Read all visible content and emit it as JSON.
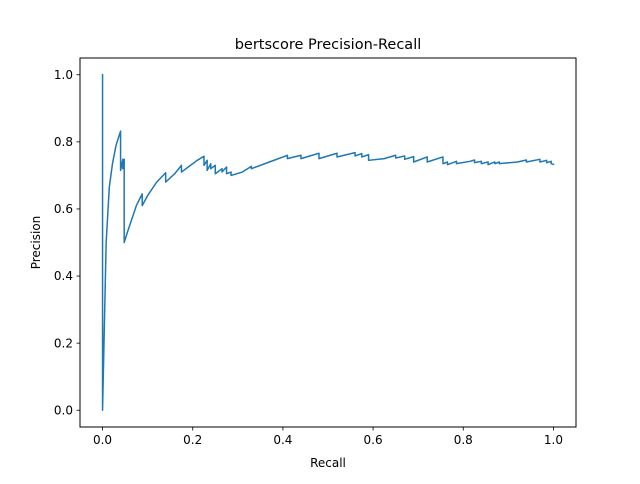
{
  "chart_data": {
    "type": "line",
    "title": "bertscore Precision-Recall",
    "xlabel": "Recall",
    "ylabel": "Precision",
    "xlim": [
      -0.05,
      1.05
    ],
    "ylim": [
      -0.05,
      1.05
    ],
    "x_ticks": [
      0.0,
      0.2,
      0.4,
      0.6,
      0.8,
      1.0
    ],
    "x_tick_labels": [
      "0.0",
      "0.2",
      "0.4",
      "0.6",
      "0.8",
      "1.0"
    ],
    "y_ticks": [
      0.0,
      0.2,
      0.4,
      0.6,
      0.8,
      1.0
    ],
    "y_tick_labels": [
      "0.0",
      "0.2",
      "0.4",
      "0.6",
      "0.8",
      "1.0"
    ],
    "grid": false,
    "legend": "none",
    "series": [
      {
        "color": "#1f77b4",
        "x": [
          0.0,
          0.0,
          0.008,
          0.015,
          0.022,
          0.03,
          0.04,
          0.04,
          0.045,
          0.045,
          0.048,
          0.048,
          0.055,
          0.065,
          0.075,
          0.088,
          0.088,
          0.1,
          0.12,
          0.14,
          0.14,
          0.16,
          0.175,
          0.175,
          0.19,
          0.21,
          0.225,
          0.225,
          0.232,
          0.232,
          0.24,
          0.24,
          0.25,
          0.25,
          0.265,
          0.265,
          0.275,
          0.275,
          0.285,
          0.285,
          0.31,
          0.33,
          0.33,
          0.37,
          0.41,
          0.41,
          0.44,
          0.44,
          0.48,
          0.48,
          0.52,
          0.52,
          0.56,
          0.56,
          0.575,
          0.575,
          0.59,
          0.59,
          0.625,
          0.65,
          0.65,
          0.67,
          0.67,
          0.69,
          0.69,
          0.72,
          0.72,
          0.755,
          0.755,
          0.765,
          0.765,
          0.785,
          0.785,
          0.815,
          0.825,
          0.825,
          0.84,
          0.84,
          0.855,
          0.855,
          0.87,
          0.87,
          0.88,
          0.88,
          0.92,
          0.94,
          0.94,
          0.97,
          0.97,
          0.985,
          0.985,
          0.995,
          0.995,
          1.0
        ],
        "y": [
          1.0,
          0.0,
          0.5,
          0.665,
          0.735,
          0.79,
          0.832,
          0.715,
          0.748,
          0.72,
          0.748,
          0.5,
          0.53,
          0.57,
          0.61,
          0.645,
          0.61,
          0.64,
          0.68,
          0.708,
          0.68,
          0.705,
          0.73,
          0.71,
          0.725,
          0.745,
          0.757,
          0.73,
          0.745,
          0.715,
          0.735,
          0.72,
          0.73,
          0.705,
          0.72,
          0.71,
          0.725,
          0.705,
          0.71,
          0.7,
          0.71,
          0.727,
          0.72,
          0.74,
          0.76,
          0.75,
          0.76,
          0.75,
          0.766,
          0.75,
          0.766,
          0.755,
          0.768,
          0.758,
          0.765,
          0.755,
          0.762,
          0.745,
          0.75,
          0.76,
          0.752,
          0.758,
          0.748,
          0.756,
          0.74,
          0.755,
          0.74,
          0.755,
          0.735,
          0.74,
          0.732,
          0.742,
          0.735,
          0.742,
          0.746,
          0.738,
          0.742,
          0.735,
          0.74,
          0.732,
          0.74,
          0.735,
          0.74,
          0.735,
          0.74,
          0.746,
          0.74,
          0.748,
          0.74,
          0.745,
          0.738,
          0.742,
          0.735,
          0.733
        ]
      }
    ]
  }
}
